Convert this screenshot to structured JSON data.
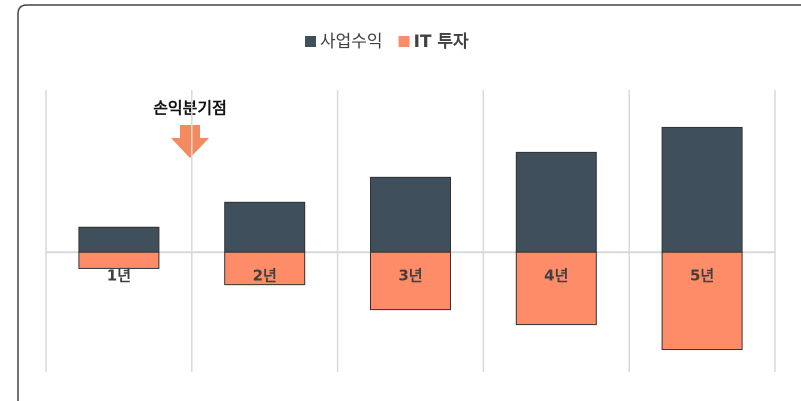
{
  "chart_data": {
    "type": "bar",
    "categories": [
      "1년",
      "2년",
      "3년",
      "4년",
      "5년"
    ],
    "series": [
      {
        "name": "사업수익",
        "color": "#3f4f5c",
        "values": [
          1,
          2,
          3,
          4,
          5
        ]
      },
      {
        "name": "IT 투자",
        "color": "#fe8c68",
        "values": [
          -0.65,
          -1.3,
          -2.3,
          -2.9,
          -3.9
        ]
      }
    ],
    "ylim": [
      -4.8,
      6.5
    ],
    "annotation": "손익분기점"
  }
}
